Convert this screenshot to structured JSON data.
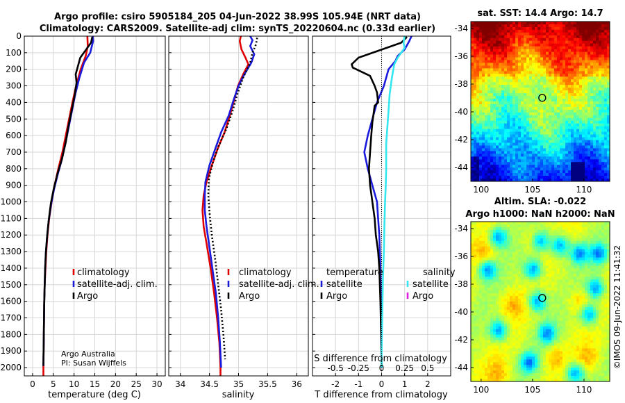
{
  "title_line1": "Argo profile: csiro 5905184_205 04-Jun-2022 38.99S 105.94E (NRT data)",
  "title_line2": "Climatology: CARS2009. Satellite-adj clim: synTS_20220604.nc (0.33d earlier)",
  "credit_line1": "Argo Australia",
  "credit_line2": "PI: Susan Wijffels",
  "imos_stamp": "©IMOS 09-Jun-2022 11:41:32",
  "colors": {
    "climatology": "#e00000",
    "satellite_adj": "#1a1adc",
    "argo": "#000000",
    "t_diff_sat": "#1a1adc",
    "s_diff_sat": "#33e6f0",
    "s_diff_argo": "#e020e0"
  },
  "chart_data": [
    {
      "id": "temperature",
      "type": "line",
      "xlabel": "temperature (deg C)",
      "xlim": [
        -2,
        32
      ],
      "xticks": [
        0,
        5,
        10,
        15,
        20,
        25,
        30
      ],
      "ylim": [
        0,
        2050
      ],
      "yticks": [
        0,
        100,
        200,
        300,
        400,
        500,
        600,
        700,
        800,
        900,
        1000,
        1100,
        1200,
        1300,
        1400,
        1500,
        1600,
        1700,
        1800,
        1900,
        2000
      ],
      "legend": [
        "climatology",
        "satellite-adj. clim.",
        "Argo"
      ],
      "series": [
        {
          "name": "climatology",
          "style": "solid",
          "points": [
            [
              13.2,
              0
            ],
            [
              13.3,
              60
            ],
            [
              12.8,
              120
            ],
            [
              11.6,
              200
            ],
            [
              10.5,
              300
            ],
            [
              9.6,
              400
            ],
            [
              8.8,
              500
            ],
            [
              8.0,
              600
            ],
            [
              7.2,
              700
            ],
            [
              6.2,
              800
            ],
            [
              5.3,
              900
            ],
            [
              4.6,
              1000
            ],
            [
              4.0,
              1100
            ],
            [
              3.6,
              1200
            ],
            [
              3.3,
              1300
            ],
            [
              3.1,
              1400
            ],
            [
              2.9,
              1500
            ],
            [
              2.8,
              1600
            ],
            [
              2.7,
              1800
            ],
            [
              2.6,
              2000
            ],
            [
              2.6,
              2050
            ]
          ]
        },
        {
          "name": "satellite-adj. clim.",
          "style": "solid",
          "points": [
            [
              14.5,
              0
            ],
            [
              14.6,
              30
            ],
            [
              13.9,
              100
            ],
            [
              12.4,
              160
            ],
            [
              11.3,
              250
            ],
            [
              10.3,
              350
            ],
            [
              9.5,
              450
            ],
            [
              8.7,
              550
            ],
            [
              7.9,
              650
            ],
            [
              7.0,
              750
            ],
            [
              6.1,
              830
            ],
            [
              5.2,
              920
            ],
            [
              4.5,
              1010
            ],
            [
              3.9,
              1110
            ],
            [
              3.5,
              1210
            ],
            [
              3.2,
              1310
            ],
            [
              3.0,
              1410
            ],
            [
              2.9,
              1510
            ],
            [
              2.8,
              1610
            ],
            [
              2.7,
              1800
            ],
            [
              2.6,
              1990
            ]
          ]
        },
        {
          "name": "Argo",
          "style": "solid",
          "points": [
            [
              14.4,
              5
            ],
            [
              14.1,
              40
            ],
            [
              11.5,
              130
            ],
            [
              10.4,
              230
            ],
            [
              10.6,
              280
            ],
            [
              10.2,
              350
            ],
            [
              9.8,
              400
            ],
            [
              9.4,
              450
            ],
            [
              8.6,
              550
            ],
            [
              8.0,
              640
            ],
            [
              7.1,
              740
            ],
            [
              6.0,
              830
            ],
            [
              5.1,
              920
            ],
            [
              4.4,
              1010
            ],
            [
              3.9,
              1110
            ],
            [
              3.5,
              1210
            ],
            [
              3.2,
              1310
            ],
            [
              3.0,
              1410
            ],
            [
              2.8,
              1610
            ],
            [
              2.7,
              1800
            ],
            [
              2.6,
              1990
            ]
          ]
        }
      ]
    },
    {
      "id": "salinity",
      "type": "line",
      "xlabel": "salinity",
      "xlim": [
        33.8,
        36.2
      ],
      "xticks": [
        34,
        34.5,
        35,
        35.5,
        36
      ],
      "xticklabels": [
        "34",
        "34.5",
        "35",
        "35.5",
        "36"
      ],
      "ylim": [
        0,
        2050
      ],
      "legend": [
        "climatology",
        "satellite-adj. clim.",
        "Argo"
      ],
      "series": [
        {
          "name": "climatology",
          "style": "solid",
          "points": [
            [
              35.04,
              0
            ],
            [
              35.02,
              30
            ],
            [
              35.05,
              80
            ],
            [
              35.12,
              130
            ],
            [
              35.17,
              170
            ],
            [
              35.08,
              230
            ],
            [
              34.99,
              300
            ],
            [
              34.93,
              380
            ],
            [
              34.85,
              480
            ],
            [
              34.76,
              580
            ],
            [
              34.64,
              680
            ],
            [
              34.54,
              780
            ],
            [
              34.45,
              880
            ],
            [
              34.4,
              960
            ],
            [
              34.38,
              1050
            ],
            [
              34.4,
              1150
            ],
            [
              34.45,
              1250
            ],
            [
              34.52,
              1400
            ],
            [
              34.58,
              1550
            ],
            [
              34.63,
              1700
            ],
            [
              34.67,
              1850
            ],
            [
              34.69,
              2000
            ],
            [
              34.69,
              2050
            ]
          ]
        },
        {
          "name": "satellite-adj. clim.",
          "style": "solid",
          "points": [
            [
              35.2,
              0
            ],
            [
              35.24,
              25
            ],
            [
              35.2,
              60
            ],
            [
              35.27,
              110
            ],
            [
              35.22,
              160
            ],
            [
              35.1,
              230
            ],
            [
              35.0,
              300
            ],
            [
              34.92,
              380
            ],
            [
              34.83,
              480
            ],
            [
              34.7,
              580
            ],
            [
              34.6,
              680
            ],
            [
              34.5,
              780
            ],
            [
              34.43,
              880
            ],
            [
              34.42,
              960
            ],
            [
              34.42,
              1050
            ],
            [
              34.45,
              1150
            ],
            [
              34.49,
              1250
            ],
            [
              34.55,
              1400
            ],
            [
              34.61,
              1550
            ],
            [
              34.65,
              1700
            ],
            [
              34.68,
              1850
            ],
            [
              34.7,
              2000
            ]
          ]
        },
        {
          "name": "Argo",
          "style": "dotted",
          "points": [
            [
              35.32,
              10
            ],
            [
              35.3,
              50
            ],
            [
              35.24,
              100
            ],
            [
              35.2,
              160
            ],
            [
              35.08,
              250
            ],
            [
              34.98,
              350
            ],
            [
              34.9,
              450
            ],
            [
              34.79,
              560
            ],
            [
              34.66,
              660
            ],
            [
              34.56,
              760
            ],
            [
              34.49,
              860
            ],
            [
              34.48,
              960
            ],
            [
              34.5,
              1060
            ],
            [
              34.54,
              1200
            ],
            [
              34.6,
              1350
            ],
            [
              34.65,
              1500
            ],
            [
              34.7,
              1650
            ],
            [
              34.74,
              1800
            ],
            [
              34.77,
              1950
            ]
          ]
        }
      ]
    },
    {
      "id": "differences",
      "type": "line",
      "xlabel": "T difference from climatology",
      "top_label": "S difference from climatology",
      "xlim": [
        -3,
        3
      ],
      "xticks": [
        -2,
        -1,
        0,
        1,
        2
      ],
      "xticklabels": [
        "-2",
        "-1",
        "0",
        "1",
        "2"
      ],
      "top_ticklabels": [
        "-0.5",
        "-0.25",
        "0",
        "0.25",
        "0.5"
      ],
      "top_tick_values": [
        -2,
        -1,
        0,
        1,
        2
      ],
      "ylim": [
        0,
        2050
      ],
      "legend_temperature_title": "temperature",
      "legend_salinity_title": "salinity",
      "legend_temperature": [
        "satellite",
        "Argo"
      ],
      "legend_salinity": [
        "satellite",
        "Argo"
      ],
      "series": [
        {
          "name": "temperature satellite",
          "style": "solid",
          "points": [
            [
              1.3,
              0
            ],
            [
              1.2,
              30
            ],
            [
              1.0,
              80
            ],
            [
              0.7,
              120
            ],
            [
              0.6,
              150
            ],
            [
              0.3,
              200
            ],
            [
              0.1,
              300
            ],
            [
              -0.2,
              400
            ],
            [
              -0.4,
              500
            ],
            [
              -0.6,
              600
            ],
            [
              -0.75,
              700
            ],
            [
              -0.6,
              800
            ],
            [
              -0.4,
              900
            ],
            [
              -0.2,
              1000
            ],
            [
              -0.15,
              1100
            ],
            [
              -0.1,
              1200
            ],
            [
              -0.05,
              1400
            ],
            [
              -0.03,
              1600
            ],
            [
              -0.02,
              1800
            ],
            [
              0.0,
              2000
            ]
          ]
        },
        {
          "name": "temperature Argo",
          "style": "solid",
          "points": [
            [
              1.1,
              5
            ],
            [
              0.85,
              40
            ],
            [
              -1.0,
              130
            ],
            [
              -1.3,
              170
            ],
            [
              -1.25,
              190
            ],
            [
              -0.5,
              240
            ],
            [
              -0.3,
              300
            ],
            [
              -0.2,
              340
            ],
            [
              -0.15,
              400
            ],
            [
              -0.3,
              420
            ],
            [
              -0.35,
              470
            ],
            [
              -0.4,
              520
            ],
            [
              -0.45,
              600
            ],
            [
              -0.5,
              700
            ],
            [
              -0.55,
              800
            ],
            [
              -0.5,
              900
            ],
            [
              -0.45,
              950
            ],
            [
              -0.4,
              1000
            ],
            [
              -0.3,
              1100
            ],
            [
              -0.25,
              1200
            ],
            [
              -0.15,
              1300
            ],
            [
              -0.1,
              1400
            ],
            [
              -0.05,
              1600
            ],
            [
              -0.02,
              1800
            ],
            [
              0.0,
              1990
            ]
          ]
        },
        {
          "name": "salinity satellite",
          "style": "solid",
          "points": [
            [
              1.0,
              0
            ],
            [
              0.95,
              40
            ],
            [
              1.0,
              70
            ],
            [
              0.9,
              90
            ],
            [
              0.7,
              130
            ],
            [
              0.55,
              170
            ],
            [
              0.45,
              250
            ],
            [
              0.35,
              350
            ],
            [
              0.3,
              450
            ],
            [
              0.25,
              550
            ],
            [
              0.2,
              650
            ],
            [
              0.2,
              750
            ],
            [
              0.2,
              800
            ],
            [
              0.18,
              900
            ],
            [
              0.15,
              1000
            ],
            [
              0.12,
              1150
            ],
            [
              0.1,
              1300
            ],
            [
              0.06,
              1450
            ],
            [
              0.04,
              1600
            ],
            [
              0.02,
              1750
            ],
            [
              0.0,
              1900
            ],
            [
              0.0,
              2000
            ]
          ]
        },
        {
          "name": "salinity Argo",
          "style": "dotted",
          "points": [
            [
              0.0,
              0
            ],
            [
              0.0,
              2050
            ]
          ]
        }
      ]
    },
    {
      "id": "sst_map",
      "type": "heatmap",
      "title": "sat. SST: 14.4 Argo: 14.7",
      "xlim": [
        99,
        112.5
      ],
      "xticks": [
        100,
        105,
        110
      ],
      "ylim": [
        -45,
        -33.5
      ],
      "yticks": [
        -34,
        -36,
        -38,
        -40,
        -42,
        -44
      ],
      "marker": {
        "lon": 105.94,
        "lat": -38.99
      }
    },
    {
      "id": "sla_map",
      "type": "heatmap",
      "title_line1": "Altim. SLA: -0.022",
      "title_line2": "Argo h1000: NaN h2000: NaN",
      "xlim": [
        99,
        112.5
      ],
      "xticks": [
        100,
        105,
        110
      ],
      "ylim": [
        -45,
        -33.5
      ],
      "yticks": [
        -34,
        -36,
        -38,
        -40,
        -42,
        -44
      ],
      "marker": {
        "lon": 105.94,
        "lat": -38.99
      }
    }
  ]
}
